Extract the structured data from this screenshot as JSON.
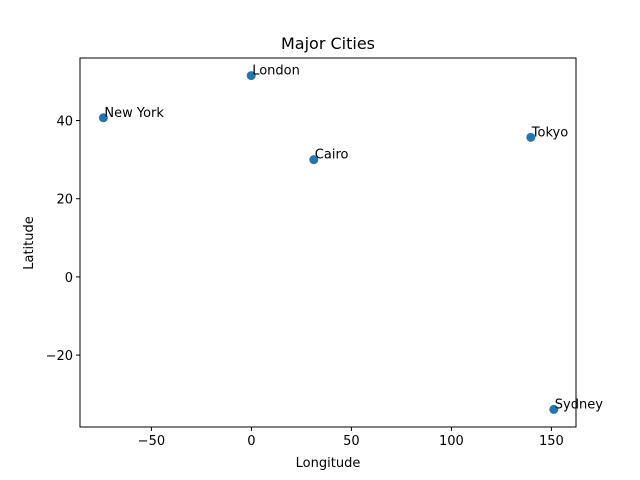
{
  "chart_data": {
    "type": "scatter",
    "title": "Major Cities",
    "xlabel": "Longitude",
    "ylabel": "Latitude",
    "xlim": [
      -85.7,
      162.3
    ],
    "ylim": [
      -38.4,
      56.0
    ],
    "xticks": [
      -50,
      0,
      50,
      100,
      150
    ],
    "xtick_labels": [
      "−50",
      "0",
      "50",
      "100",
      "150"
    ],
    "yticks": [
      -20,
      0,
      20,
      40
    ],
    "ytick_labels": [
      "−20",
      "0",
      "20",
      "40"
    ],
    "grid": false,
    "marker_color": "#1f77b4",
    "points": [
      {
        "label": "New York",
        "x": -74.0,
        "y": 40.7
      },
      {
        "label": "London",
        "x": -0.1,
        "y": 51.5
      },
      {
        "label": "Tokyo",
        "x": 139.7,
        "y": 35.7
      },
      {
        "label": "Cairo",
        "x": 31.2,
        "y": 30.0
      },
      {
        "label": "Sydney",
        "x": 151.2,
        "y": -33.9
      }
    ]
  }
}
